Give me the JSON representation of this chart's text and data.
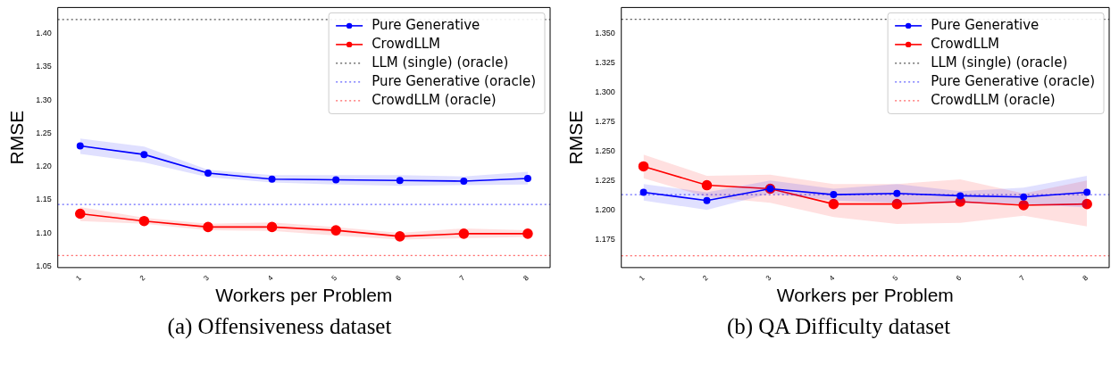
{
  "chart_data": [
    {
      "type": "line",
      "xlabel": "Workers per Problem",
      "ylabel": "RMSE",
      "annotations": [
        "(a) Offensiveness dataset"
      ],
      "x": [
        1,
        2,
        3,
        4,
        5,
        6,
        7,
        8
      ],
      "xlim": [
        0.65,
        8.35
      ],
      "xticks": [
        1,
        2,
        3,
        4,
        5,
        6,
        7,
        8
      ],
      "ylim": [
        1.048,
        1.439
      ],
      "yticks": [
        {
          "value": 1.05,
          "label": "1.05"
        },
        {
          "value": 1.1,
          "label": "1.10"
        },
        {
          "value": 1.15,
          "label": "1.15"
        },
        {
          "value": 1.2,
          "label": "1.20"
        },
        {
          "value": 1.25,
          "label": "1.25"
        },
        {
          "value": 1.3,
          "label": "1.30"
        },
        {
          "value": 1.35,
          "label": "1.35"
        },
        {
          "value": 1.4,
          "label": "1.40"
        }
      ],
      "grid": false,
      "legend": "top right",
      "marker": "circle",
      "line_style": "solid",
      "series": [
        {
          "name": "Pure Generative",
          "color": "#0000ff",
          "values": [
            1.231,
            1.218,
            1.19,
            1.181,
            1.18,
            1.179,
            1.178,
            1.182
          ],
          "lower": [
            1.219,
            1.206,
            1.184,
            1.176,
            1.173,
            1.171,
            1.172,
            1.173
          ],
          "upper": [
            1.242,
            1.23,
            1.195,
            1.187,
            1.187,
            1.187,
            1.185,
            1.192
          ]
        },
        {
          "name": "CrowdLLM",
          "color": "#ff0000",
          "values": [
            1.129,
            1.118,
            1.109,
            1.109,
            1.104,
            1.095,
            1.099,
            1.099
          ],
          "lower": [
            1.118,
            1.114,
            1.104,
            1.103,
            1.096,
            1.09,
            1.092,
            1.094
          ],
          "upper": [
            1.139,
            1.123,
            1.114,
            1.116,
            1.109,
            1.1,
            1.107,
            1.104
          ]
        }
      ],
      "ref_lines": [
        {
          "axis": "y",
          "value": 1.421,
          "label": "LLM (single) (oracle)",
          "color": "#555555",
          "line_style": "dotted"
        },
        {
          "axis": "y",
          "value": 1.143,
          "label": "Pure Generative (oracle)",
          "color": "#6666ff",
          "line_style": "dotted"
        },
        {
          "axis": "y",
          "value": 1.066,
          "label": "CrowdLLM (oracle)",
          "color": "#ff6666",
          "line_style": "dotted"
        }
      ]
    },
    {
      "type": "line",
      "xlabel": "Workers per Problem",
      "ylabel": "RMSE",
      "annotations": [
        "(b) QA Difficulty dataset"
      ],
      "x": [
        1,
        2,
        3,
        4,
        5,
        6,
        7,
        8
      ],
      "xlim": [
        0.65,
        8.35
      ],
      "xticks": [
        1,
        2,
        3,
        4,
        5,
        6,
        7,
        8
      ],
      "ylim": [
        1.151,
        1.372
      ],
      "yticks": [
        {
          "value": 1.175,
          "label": "1.175"
        },
        {
          "value": 1.2,
          "label": "1.200"
        },
        {
          "value": 1.225,
          "label": "1.225"
        },
        {
          "value": 1.25,
          "label": "1.250"
        },
        {
          "value": 1.275,
          "label": "1.275"
        },
        {
          "value": 1.3,
          "label": "1.300"
        },
        {
          "value": 1.325,
          "label": "1.325"
        },
        {
          "value": 1.35,
          "label": "1.350"
        }
      ],
      "grid": false,
      "legend": "top right",
      "marker": "circle",
      "line_style": "solid",
      "series": [
        {
          "name": "Pure Generative",
          "color": "#0000ff",
          "values": [
            1.215,
            1.208,
            1.218,
            1.213,
            1.214,
            1.212,
            1.211,
            1.215
          ],
          "lower": [
            1.208,
            1.2,
            1.214,
            1.208,
            1.206,
            1.206,
            1.205,
            1.202
          ],
          "upper": [
            1.222,
            1.215,
            1.225,
            1.218,
            1.222,
            1.216,
            1.219,
            1.229
          ]
        },
        {
          "name": "CrowdLLM",
          "color": "#ff0000",
          "values": [
            1.237,
            1.221,
            1.218,
            1.205,
            1.205,
            1.207,
            1.204,
            1.205
          ],
          "lower": [
            1.227,
            1.211,
            1.206,
            1.194,
            1.188,
            1.189,
            1.195,
            1.186
          ],
          "upper": [
            1.247,
            1.229,
            1.23,
            1.222,
            1.222,
            1.226,
            1.214,
            1.225
          ]
        }
      ],
      "ref_lines": [
        {
          "axis": "y",
          "value": 1.362,
          "label": "LLM (single) (oracle)",
          "color": "#555555",
          "line_style": "dotted"
        },
        {
          "axis": "y",
          "value": 1.213,
          "label": "Pure Generative (oracle)",
          "color": "#6666ff",
          "line_style": "dotted"
        },
        {
          "axis": "y",
          "value": 1.161,
          "label": "CrowdLLM (oracle)",
          "color": "#ff6666",
          "line_style": "dotted"
        }
      ]
    }
  ]
}
